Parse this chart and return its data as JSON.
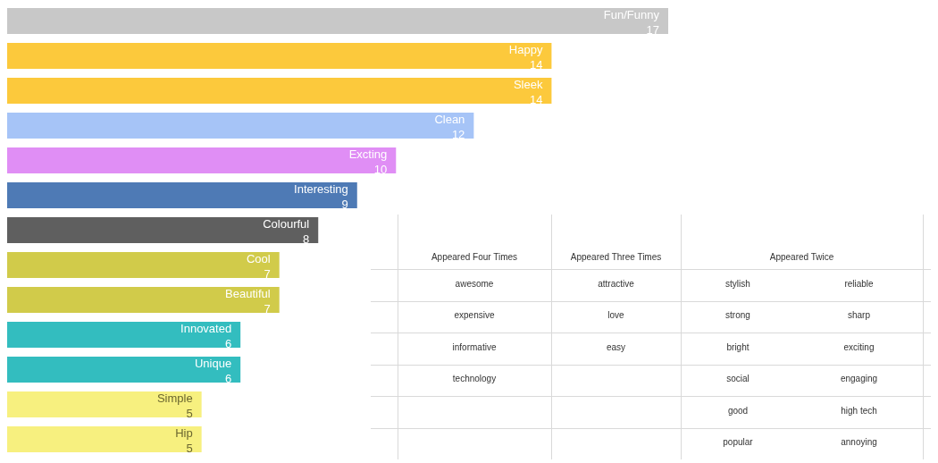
{
  "chart_data": [
    {
      "type": "bar",
      "orientation": "horizontal",
      "data_labels": true,
      "categories": [
        "Fun/Funny",
        "Happy",
        "Sleek",
        "Clean",
        "Excting",
        "Interesting",
        "Colourful",
        "Cool",
        "Beautiful",
        "Innovated",
        "Unique",
        "Simple",
        "Hip"
      ],
      "values": [
        17,
        14,
        14,
        12,
        10,
        9,
        8,
        7,
        7,
        6,
        6,
        5,
        5
      ],
      "colors": [
        "#c8c8c8",
        "#fcc93c",
        "#fcc93c",
        "#a6c4f7",
        "#e08ef5",
        "#4e7ab5",
        "#5f5f5f",
        "#d1cb4a",
        "#d1cb4a",
        "#33bdbf",
        "#33bdbf",
        "#f7f07f",
        "#f7f07f"
      ]
    },
    {
      "type": "other",
      "categories": [
        "Appeared Four Times",
        "Appeared Three Times",
        "Appeared Twice",
        null
      ],
      "cell_labels": [
        [
          "awesome",
          "attractive",
          "stylish",
          "reliable"
        ],
        [
          "expensive",
          "love",
          "strong",
          "sharp"
        ],
        [
          "informative",
          "easy",
          "bright",
          "exciting"
        ],
        [
          "technology",
          null,
          "social",
          "engaging"
        ],
        [
          null,
          null,
          "good",
          "high tech"
        ],
        [
          null,
          null,
          "popular",
          "annoying"
        ]
      ]
    }
  ]
}
